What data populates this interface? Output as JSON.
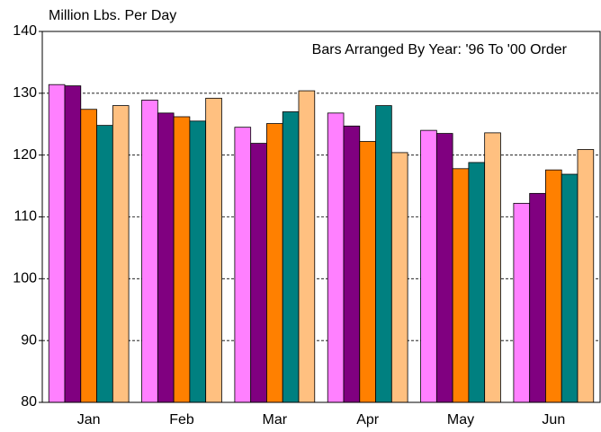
{
  "chart_data": {
    "type": "bar",
    "y_label": "Million Lbs. Per Day",
    "annotation": "Bars Arranged By Year:  '96 To '00 Order",
    "categories": [
      "Jan",
      "Feb",
      "Mar",
      "Apr",
      "May",
      "Jun"
    ],
    "series": [
      {
        "color": "#ff80ff",
        "values": [
          131.4,
          128.9,
          124.5,
          126.8,
          124.0,
          112.2
        ]
      },
      {
        "color": "#800080",
        "values": [
          131.2,
          126.8,
          121.9,
          124.7,
          123.5,
          113.8
        ]
      },
      {
        "color": "#ff8000",
        "values": [
          127.4,
          126.2,
          125.1,
          122.2,
          117.8,
          117.6
        ]
      },
      {
        "color": "#008080",
        "values": [
          124.8,
          125.5,
          127.0,
          128.0,
          118.8,
          116.9
        ]
      },
      {
        "color": "#ffc080",
        "values": [
          128.0,
          129.2,
          130.4,
          120.4,
          123.6,
          120.9
        ]
      }
    ],
    "ylim": [
      80,
      140
    ],
    "yticks": [
      80,
      90,
      100,
      110,
      120,
      130,
      140
    ],
    "grid": true
  }
}
